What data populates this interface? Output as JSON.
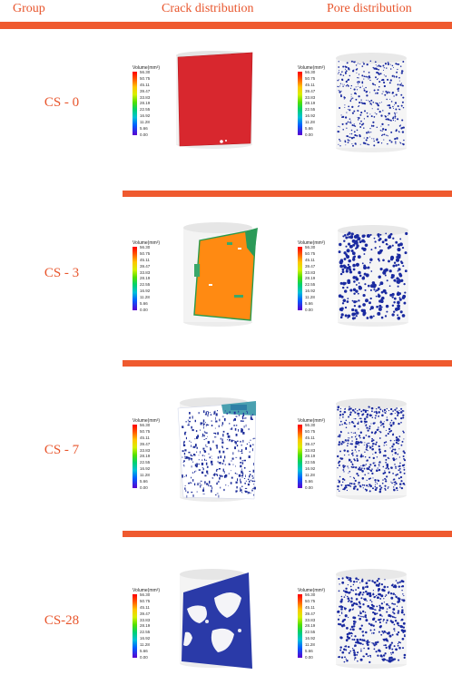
{
  "headers": {
    "group": "Group",
    "crack": "Crack distribution",
    "pore": "Pore distribution"
  },
  "groups": [
    "CS - 0",
    "CS - 3",
    "CS - 7",
    "CS-28"
  ],
  "legend": {
    "title": "Volume(mm³)",
    "ticks": [
      "56.30",
      "50.75",
      "45.11",
      "39.47",
      "33.83",
      "28.19",
      "22.55",
      "16.92",
      "11.28",
      "5.66",
      "0.00"
    ],
    "gradient_colors": [
      "#ff0000",
      "#ff5a00",
      "#ffc400",
      "#d8f000",
      "#52e000",
      "#00d070",
      "#00c0d8",
      "#0060ff",
      "#5a00d0"
    ]
  },
  "colors": {
    "accent": "#ef5a2f",
    "crack_cs0": "#d8272e",
    "crack_cs3": "#ff8a12",
    "pore": "#1a2aa0",
    "crack_cs28": "#2a3aa8"
  }
}
